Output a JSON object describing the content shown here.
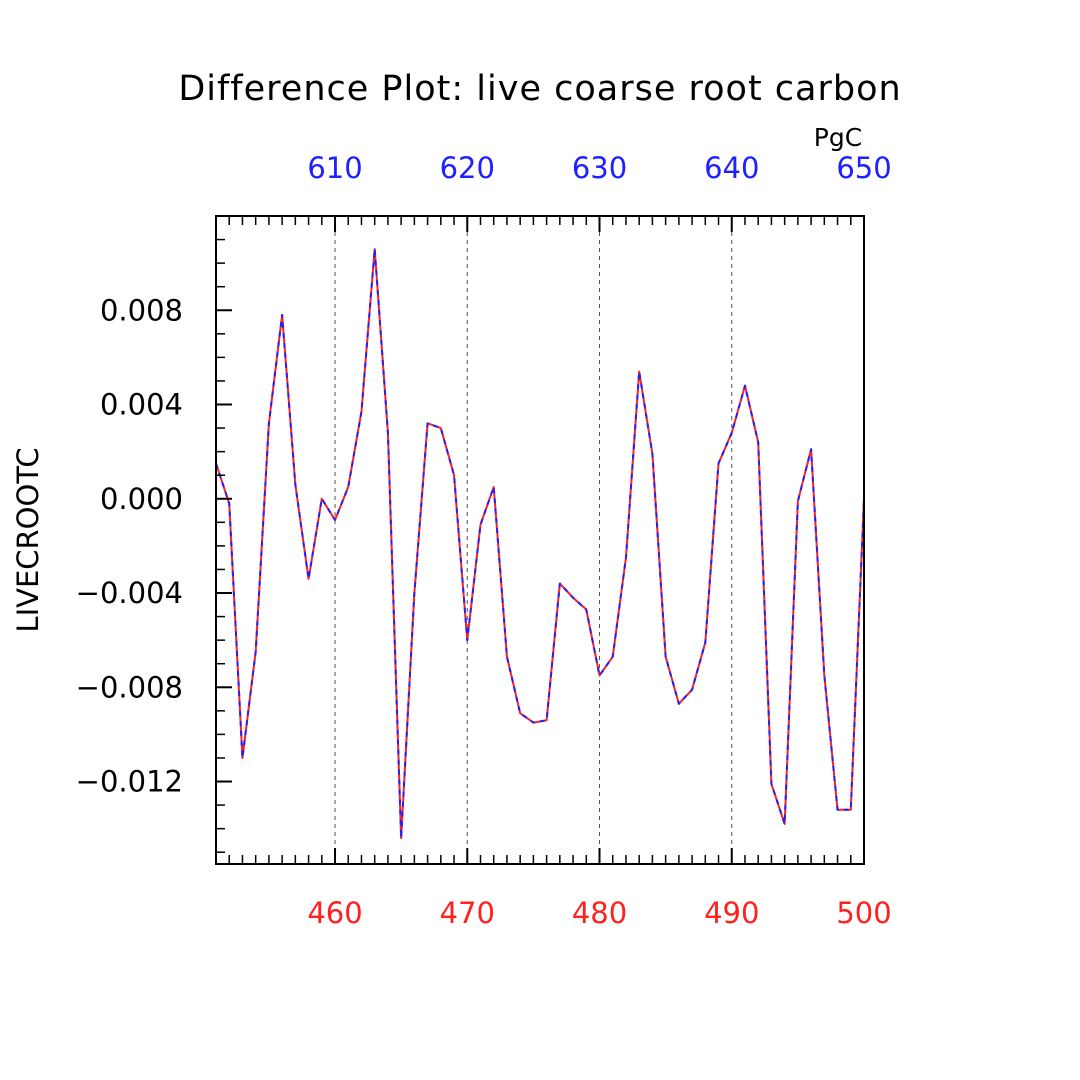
{
  "chart_data": {
    "type": "line",
    "title": "Difference Plot: live coarse root carbon",
    "ylabel": "LIVECROOTC",
    "top_axis_units": "PgC",
    "xlim": [
      451,
      500
    ],
    "ylim": [
      -0.0155,
      0.012
    ],
    "bottom_ticks": [
      460,
      470,
      480,
      490,
      500
    ],
    "top_ticks": [
      610,
      620,
      630,
      640,
      650
    ],
    "top_axis_offset": 150,
    "y_ticks": [
      -0.012,
      -0.008,
      -0.004,
      0.0,
      0.004,
      0.008
    ],
    "y_tick_labels": [
      "−0.012",
      "−0.008",
      "−0.004",
      "0.000",
      "0.004",
      "0.008"
    ],
    "grid": "vertical dashed at bottom ticks",
    "colors": {
      "bottom_axis": "#ff2020",
      "top_axis": "#2020ff",
      "line_solid": "#ff2020",
      "line_dashed": "#2020ff",
      "frame": "#000000",
      "grid": "#555555"
    },
    "series": [
      {
        "x": [
          451,
          452,
          453,
          454,
          455,
          456,
          457,
          458,
          459,
          460,
          461,
          462,
          463,
          464,
          465,
          466,
          467,
          468,
          469,
          470,
          471,
          472,
          473,
          474,
          475,
          476,
          477,
          478,
          479,
          480,
          481,
          482,
          483,
          484,
          485,
          486,
          487,
          488,
          489,
          490,
          491,
          492,
          493,
          494,
          495,
          496,
          497,
          498,
          499,
          500
        ],
        "values": [
          0.0015,
          -0.0002,
          -0.011,
          -0.0065,
          0.0032,
          0.0078,
          0.0006,
          -0.0034,
          0.0,
          -0.0009,
          0.0005,
          0.0037,
          0.0106,
          0.0028,
          -0.0144,
          -0.004,
          0.0032,
          0.003,
          0.001,
          -0.006,
          -0.0011,
          0.0005,
          -0.0067,
          -0.0091,
          -0.0095,
          -0.0094,
          -0.0036,
          -0.0042,
          -0.0047,
          -0.0075,
          -0.0067,
          -0.0025,
          0.0054,
          0.0019,
          -0.0067,
          -0.0087,
          -0.0081,
          -0.0061,
          0.0015,
          0.0028,
          0.0048,
          0.0024,
          -0.0121,
          -0.0138,
          -0.0001,
          0.0021,
          -0.0075,
          -0.0132,
          -0.0132,
          0.0
        ]
      }
    ]
  }
}
